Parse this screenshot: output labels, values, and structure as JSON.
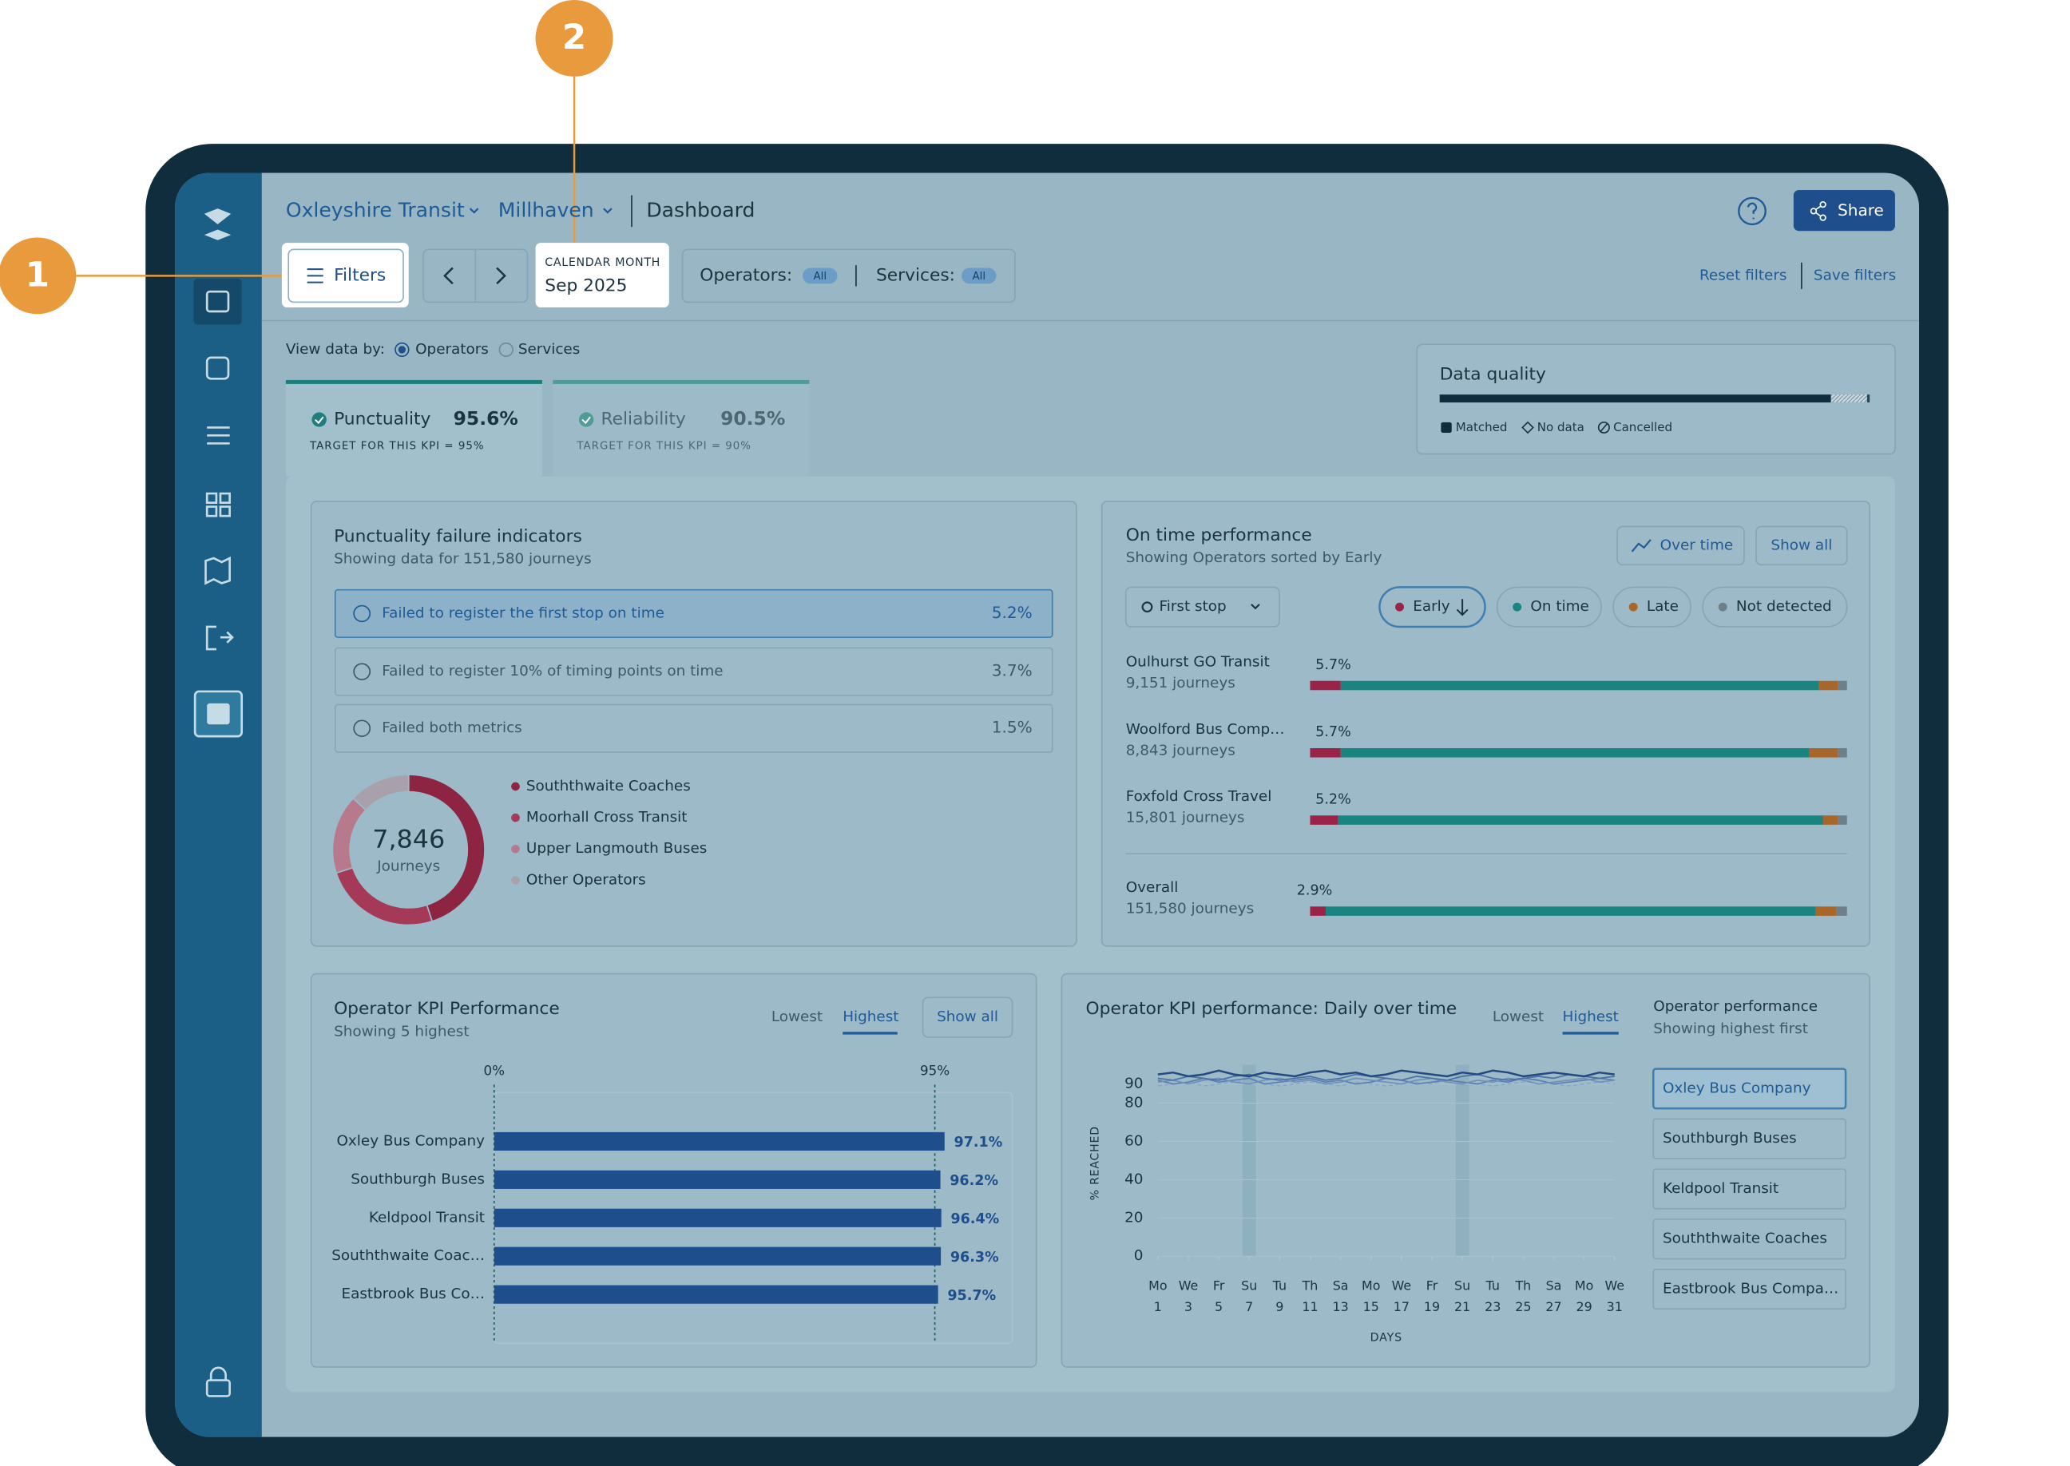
{
  "callouts": [
    "1",
    "2"
  ],
  "header": {
    "org": "Oxleyshire Transit",
    "area": "Millhaven",
    "page": "Dashboard",
    "share": "Share"
  },
  "filters": {
    "button": "Filters",
    "month_label": "CALENDAR MONTH",
    "month": "Sep 2025",
    "operators": "Operators:",
    "operators_value": "All",
    "services": "Services:",
    "services_value": "All",
    "reset": "Reset filters",
    "save": "Save filters"
  },
  "view": {
    "label": "View data by:",
    "options": [
      "Operators",
      "Services"
    ]
  },
  "kpis": [
    {
      "name": "Punctuality",
      "value": "95.6%",
      "target": "TARGET FOR THIS KPI = 95%"
    },
    {
      "name": "Reliability",
      "value": "90.5%",
      "target": "TARGET FOR THIS KPI = 90%"
    }
  ],
  "failure_indicators": {
    "title": "Punctuality failure indicators",
    "subtitle": "Showing data for 151,580 journeys",
    "items": [
      {
        "label": "Failed to register the first stop on time",
        "value": "5.2%"
      },
      {
        "label": "Failed to register 10% of timing points on time",
        "value": "3.7%"
      },
      {
        "label": "Failed both metrics",
        "value": "1.5%"
      }
    ]
  },
  "chart_data": [
    {
      "type": "stacked_bar",
      "title": "Data quality",
      "xlim": [
        0,
        100
      ],
      "series": [
        {
          "name": "Matched",
          "color": "#0f2d3d",
          "values": [
            91
          ]
        },
        {
          "name": "No data",
          "color": "#b9ccd5",
          "values": [
            8.4
          ]
        },
        {
          "name": "Cancelled",
          "color": "#2a4552",
          "values": [
            0.6
          ]
        }
      ]
    },
    {
      "type": "donut",
      "total": "7,846",
      "total_label": "Journeys",
      "categories": [
        "Souththwaite Coaches",
        "Moorhall Cross Transit",
        "Upper Langmouth Buses",
        "Other Operators"
      ],
      "values": [
        45,
        25,
        17,
        13
      ],
      "colors": [
        "#8c2442",
        "#a43a58",
        "#b77a8c",
        "#a8a0aa"
      ]
    },
    {
      "type": "stacked_bar",
      "title": "On time performance",
      "subtitle": "Showing Operators sorted by Early",
      "buttons": [
        "Over time",
        "Show all"
      ],
      "stop_filter": "First stop",
      "xlim": [
        0,
        100
      ],
      "categories": [
        "Oulhurst GO Transit",
        "Woolford Bus Comp…",
        "Foxfold Cross Travel",
        "Overall"
      ],
      "category_notes": [
        "9,151 journeys",
        "8,843 journeys",
        "15,801 journeys",
        "151,580 journeys"
      ],
      "series": [
        {
          "name": "Early",
          "color": "#9b2347",
          "values": [
            5.7,
            5.7,
            5.2,
            2.9
          ],
          "value_labels": [
            "5.7%",
            "5.7%",
            "5.2%",
            "2.9%"
          ]
        },
        {
          "name": "On time",
          "color": "#1a8580",
          "values": [
            89.1,
            87.3,
            90.3,
            91.3
          ]
        },
        {
          "name": "Late",
          "color": "#a8662a",
          "values": [
            3.5,
            5.3,
            2.8,
            3.8
          ]
        },
        {
          "name": "Not detected",
          "color": "#6d7f88",
          "values": [
            1.7,
            1.7,
            1.7,
            2.0
          ]
        }
      ]
    },
    {
      "type": "bar",
      "orientation": "horizontal",
      "title": "Operator KPI Performance",
      "subtitle": "Showing 5 highest",
      "toggles": [
        "Lowest",
        "Highest"
      ],
      "button": "Show all",
      "color": "#1f4e8c",
      "categories": [
        "Oxley Bus Company",
        "Southburgh Buses",
        "Keldpool Transit",
        "Souththwaite Coac…",
        "Eastbrook Bus Co…"
      ],
      "values": [
        97.1,
        96.2,
        96.4,
        96.3,
        95.7
      ],
      "value_labels": [
        "97.1%",
        "96.2%",
        "96.4%",
        "96.3%",
        "95.7%"
      ],
      "xlim": [
        0,
        111.7
      ],
      "xticks": [
        {
          "value": 0,
          "label": "0%"
        },
        {
          "value": 95,
          "label": "95%"
        }
      ]
    },
    {
      "type": "line",
      "title": "Operator KPI performance: Daily over time",
      "toggles": [
        "Lowest",
        "Highest"
      ],
      "side_title": "Operator performance",
      "side_subtitle": "Showing highest first",
      "ylabel": "% REACHED",
      "xlabel": "DAYS",
      "x": [
        1,
        2,
        3,
        4,
        5,
        6,
        7,
        8,
        9,
        10,
        11,
        12,
        13,
        14,
        15,
        16,
        17,
        18,
        19,
        20,
        21,
        22,
        23,
        24,
        25,
        26,
        27,
        28,
        29,
        30,
        31
      ],
      "xlim": [
        1,
        31
      ],
      "xticks": [
        1,
        3,
        5,
        7,
        9,
        11,
        13,
        15,
        17,
        19,
        21,
        23,
        25,
        27,
        29,
        31
      ],
      "xtick_weekdays": [
        "Mo",
        "We",
        "Fr",
        "Su",
        "Tu",
        "Th",
        "Sa",
        "Mo",
        "We",
        "Fr",
        "Su",
        "Tu",
        "Th",
        "Sa",
        "Mo",
        "We"
      ],
      "ylim": [
        0,
        100
      ],
      "yticks": [
        0,
        20,
        40,
        60,
        80,
        90
      ],
      "series": [
        {
          "name": "Oxley Bus Company",
          "color": "#24497f",
          "values": [
            95,
            96,
            94,
            95,
            97,
            95,
            94,
            96,
            95,
            94,
            96,
            97,
            95,
            96,
            94,
            95,
            97,
            96,
            95,
            94,
            96,
            95,
            97,
            96,
            94,
            95,
            96,
            95,
            94,
            96,
            95
          ]
        },
        {
          "name": "Southburgh Buses",
          "color": "#4a6fa5",
          "values": [
            93,
            92,
            94,
            93,
            92,
            94,
            95,
            93,
            92,
            93,
            94,
            92,
            93,
            95,
            94,
            93,
            92,
            94,
            93,
            92,
            94,
            95,
            93,
            92,
            93,
            94,
            93,
            95,
            94,
            93,
            94
          ]
        },
        {
          "name": "Keldpool Transit",
          "color": "#6f8fb8",
          "values": [
            91,
            92,
            90,
            92,
            93,
            91,
            90,
            92,
            93,
            91,
            92,
            90,
            91,
            93,
            92,
            91,
            90,
            92,
            93,
            91,
            90,
            92,
            91,
            93,
            92,
            90,
            91,
            92,
            93,
            91,
            92
          ]
        },
        {
          "name": "Souththwaite Coaches",
          "color": "#5a7eb0",
          "values": [
            92,
            90,
            91,
            93,
            91,
            92,
            93,
            90,
            91,
            92,
            93,
            91,
            92,
            90,
            91,
            93,
            92,
            90,
            91,
            92,
            91,
            90,
            92,
            91,
            93,
            92,
            90,
            91,
            92,
            93,
            92
          ]
        },
        {
          "name": "Eastbrook Bus Compa…",
          "color": "#8aa7c8",
          "values": [
            89,
            90,
            91,
            89,
            90,
            91,
            92,
            90,
            89,
            90,
            91,
            90,
            89,
            91,
            90,
            89,
            90,
            91,
            90,
            92,
            91,
            90,
            89,
            90,
            91,
            92,
            90,
            89,
            90,
            91,
            90
          ]
        }
      ]
    }
  ]
}
